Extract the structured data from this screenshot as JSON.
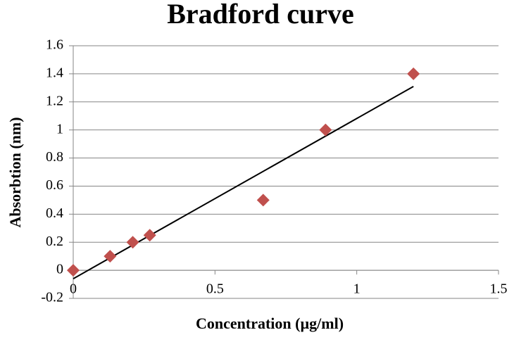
{
  "chart_data": {
    "type": "scatter",
    "title": "Bradford curve",
    "x_label": "Concentration (µg/ml)",
    "y_label": "Absorbtion (nm)",
    "x": [
      0,
      0.13,
      0.21,
      0.27,
      0.67,
      0.89,
      1.2
    ],
    "values": [
      0,
      0.1,
      0.2,
      0.25,
      0.5,
      1.0,
      1.4
    ],
    "color": "#c0504d",
    "trendline": {
      "x": [
        0,
        1.2
      ],
      "values": [
        -0.06,
        1.31
      ],
      "color": "#000000"
    },
    "xlim": [
      0,
      1.5
    ],
    "xticks": [
      0,
      0.5,
      1,
      1.5
    ],
    "ylim": [
      -0.2,
      1.6
    ],
    "yticks": [
      -0.2,
      0,
      0.2,
      0.4,
      0.6,
      0.8,
      1,
      1.2,
      1.4,
      1.6
    ],
    "grid": true
  }
}
